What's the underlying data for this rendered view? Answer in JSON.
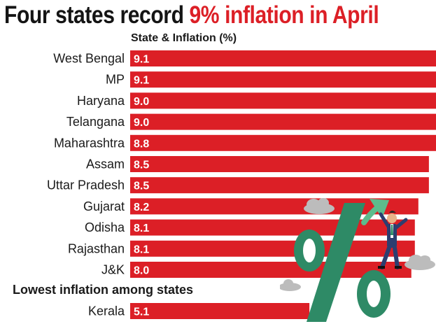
{
  "title_part1": "Four states record",
  "title_part2": "9% inflation in April",
  "chart_data": {
    "type": "bar",
    "orientation": "horizontal",
    "title": "Four states record 9% inflation in April",
    "subtitle": "State & Inflation (%)",
    "categories": [
      "West Bengal",
      "MP",
      "Haryana",
      "Telangana",
      "Maharashtra",
      "Assam",
      "Uttar Pradesh",
      "Gujarat",
      "Odisha",
      "Rajasthan",
      "J&K"
    ],
    "values": [
      9.1,
      9.1,
      9.0,
      9.0,
      8.8,
      8.5,
      8.5,
      8.2,
      8.1,
      8.1,
      8.0
    ],
    "value_labels": [
      "9.1",
      "9.1",
      "9.0",
      "9.0",
      "8.8",
      "8.5",
      "8.5",
      "8.2",
      "8.1",
      "8.1",
      "8.0"
    ],
    "section_label": "Lowest inflation among states",
    "lowest": {
      "categories": [
        "Kerala"
      ],
      "values": [
        5.1
      ],
      "value_labels": [
        "5.1"
      ]
    },
    "bar_color": "#dc1f26"
  },
  "illustration": {
    "symbol": "%",
    "symbol_color": "#2e8a66",
    "icons": [
      "percent-icon",
      "arrow-up-icon",
      "businessman-icon",
      "cloud-icon"
    ]
  }
}
